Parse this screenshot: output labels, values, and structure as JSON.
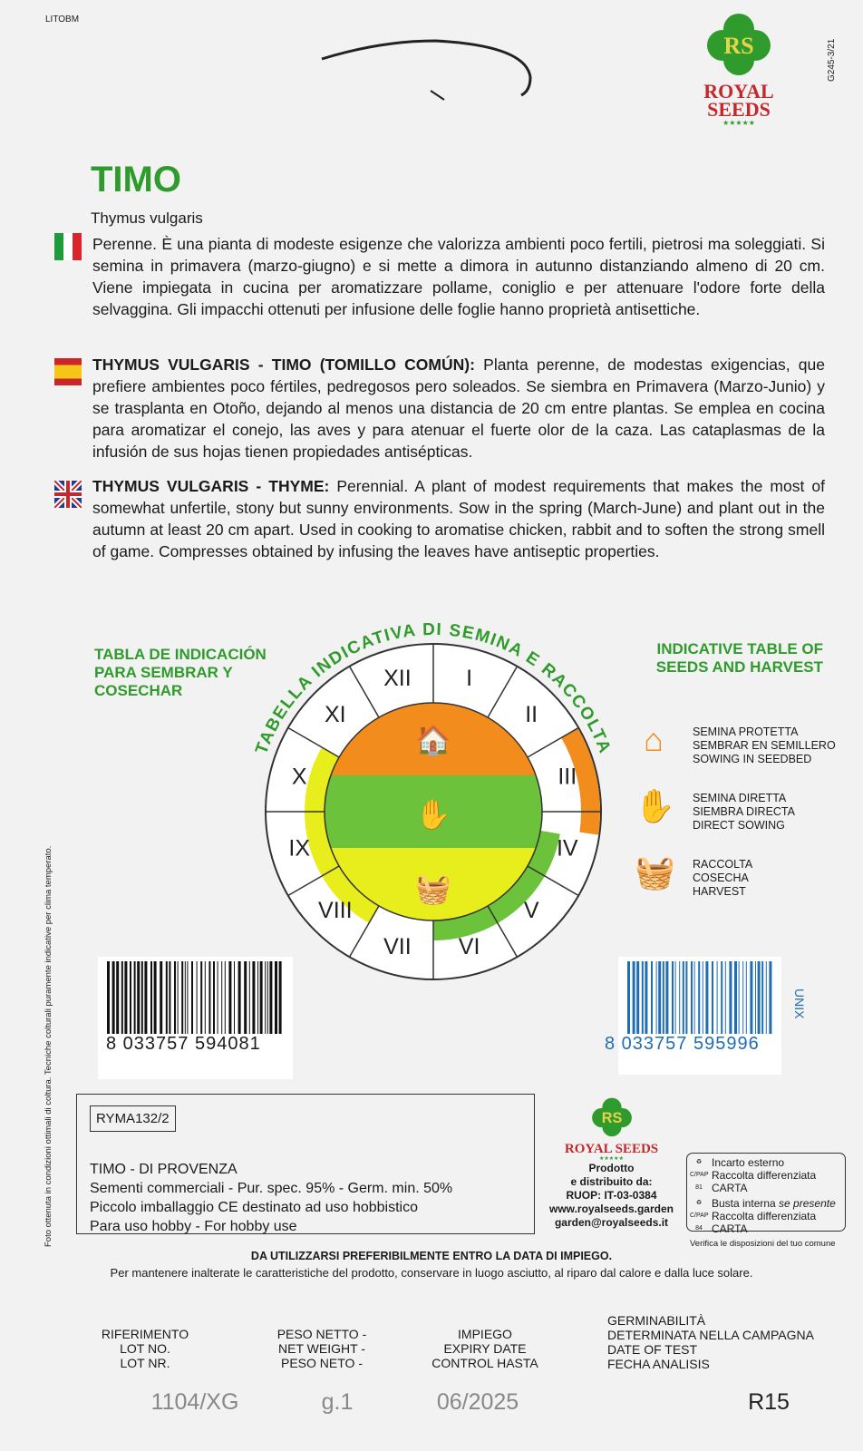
{
  "top": {
    "printer_code": "LITOBM",
    "side_code": "G245-3/21",
    "brand": "ROYAL SEEDS",
    "logo_letters": "RS"
  },
  "product": {
    "title": "TIMO",
    "latin": "Thymus vulgaris"
  },
  "descriptions": [
    {
      "lang": "it",
      "heading": "",
      "text": "Perenne. È una pianta di modeste esigenze che valorizza ambienti poco fertili, pietrosi ma soleggiati. Si semina in primavera (marzo-giugno) e si mette a dimora in autunno distanziando almeno di 20 cm. Viene impiegata in cucina per aromatizzare pollame, coniglio e per attenuare l'odore forte della selvaggina. Gli impacchi ottenuti per infusione delle foglie hanno proprietà antisettiche."
    },
    {
      "lang": "es",
      "heading": "THYMUS VULGARIS - TIMO (TOMILLO COMÚN):",
      "text": " Planta perenne, de modestas exigencias, que prefiere ambientes poco fértiles, pedregosos pero soleados. Se siembra en Primavera (Marzo-Junio) y se trasplanta en Otoño, dejando al menos una distancia de 20 cm entre plantas. Se emplea en cocina para aromatizar el conejo, las aves y para atenuar el fuerte olor de la caza. Las cataplasmas de la infusión de sus hojas tienen propiedades antisépticas."
    },
    {
      "lang": "en",
      "heading": "THYMUS VULGARIS - THYME:",
      "text": " Perennial. A plant of modest requirements that makes the most of somewhat unfertile, stony but sunny environments. Sow in the spring (March-June) and plant out in the autumn at least 20 cm apart. Used in cooking to aromatise chicken, rabbit and to soften the strong smell of game. Compresses obtained by infusing the leaves have antiseptic properties."
    }
  ],
  "calendar": {
    "title_es": "TABLA DE INDICACIÓN PARA SEMBRAR Y COSECHAR",
    "title_it": "TABELLA INDICATIVA DI SEMINA E RACCOLTA",
    "title_en": "INDICATIVE TABLE OF SEEDS AND HARVEST",
    "months": [
      "I",
      "II",
      "III",
      "IV",
      "V",
      "VI",
      "VII",
      "VIII",
      "IX",
      "X",
      "XI",
      "XII"
    ],
    "protected_sowing_months": [
      "III",
      "IV"
    ],
    "direct_sowing_months": [
      "IV",
      "V",
      "VI"
    ],
    "harvest_months": [
      "VIII",
      "IX",
      "X"
    ],
    "colors": {
      "protected": "#f28c1c",
      "direct": "#6cc23a",
      "harvest": "#e8ee1c"
    },
    "legend": [
      {
        "icon": "seedbed-icon",
        "lines": [
          "SEMINA PROTETTA",
          "SEMBRAR EN SEMILLERO",
          "SOWING IN SEEDBED"
        ]
      },
      {
        "icon": "direct-sowing-icon",
        "lines": [
          "SEMINA DIRETTA",
          "SIEMBRA DIRECTA",
          "DIRECT SOWING"
        ]
      },
      {
        "icon": "harvest-basket-icon",
        "lines": [
          "RACCOLTA",
          "COSECHA",
          "HARVEST"
        ]
      }
    ]
  },
  "barcodes": {
    "left": "8 033757 594081",
    "right": "8 033757 595996",
    "right_tag": "UNIX"
  },
  "side_note": "Foto ottenuta in condizioni ottimali di coltura. Tecniche colturali puramente indicative per clima temperato.",
  "info": {
    "code": "RYMA132/2",
    "lines": [
      "TIMO - DI PROVENZA",
      "Sementi commerciali - Pur. spec. 95% - Germ. min. 50%",
      "Piccolo imballaggio CE destinato ad uso hobbistico",
      "Para uso hobby - For hobby use"
    ]
  },
  "producer": {
    "lines": [
      "Prodotto",
      "e distribuito da:",
      "RUOP: IT-03-0384",
      "www.royalseeds.garden",
      "garden@royalseeds.it"
    ]
  },
  "recycling": {
    "outer_title": "Incarto esterno",
    "outer_text": "Raccolta differenziata CARTA",
    "inner_title": "Busta interna ",
    "inner_italic": "se presente",
    "inner_text": "Raccolta differenziata CARTA",
    "note": "Verifica le disposizioni del tuo comune",
    "code1": "C/PAP 81",
    "code2": "C/PAP 84"
  },
  "storage": {
    "line1": "DA UTILIZZARSI PREFERIBILMENTE ENTRO LA DATA DI IMPIEGO.",
    "line2": "Per mantenere inalterate le caratteristiche del prodotto, conservare in luogo asciutto, al riparo dal calore e dalla luce solare."
  },
  "stamp": {
    "labels": [
      [
        "RIFERIMENTO",
        "LOT NO.",
        "LOT NR."
      ],
      [
        "PESO NETTO -",
        "NET WEIGHT -",
        "PESO NETO -"
      ],
      [
        "IMPIEGO",
        "EXPIRY DATE",
        "CONTROL HASTA"
      ],
      [
        "GERMINABILITÀ",
        "DETERMINATA NELLA CAMPAGNA",
        "DATE OF TEST",
        "FECHA ANALISIS"
      ]
    ],
    "values": [
      "1104/XG",
      "g.1",
      "06/2025",
      "R15"
    ]
  }
}
